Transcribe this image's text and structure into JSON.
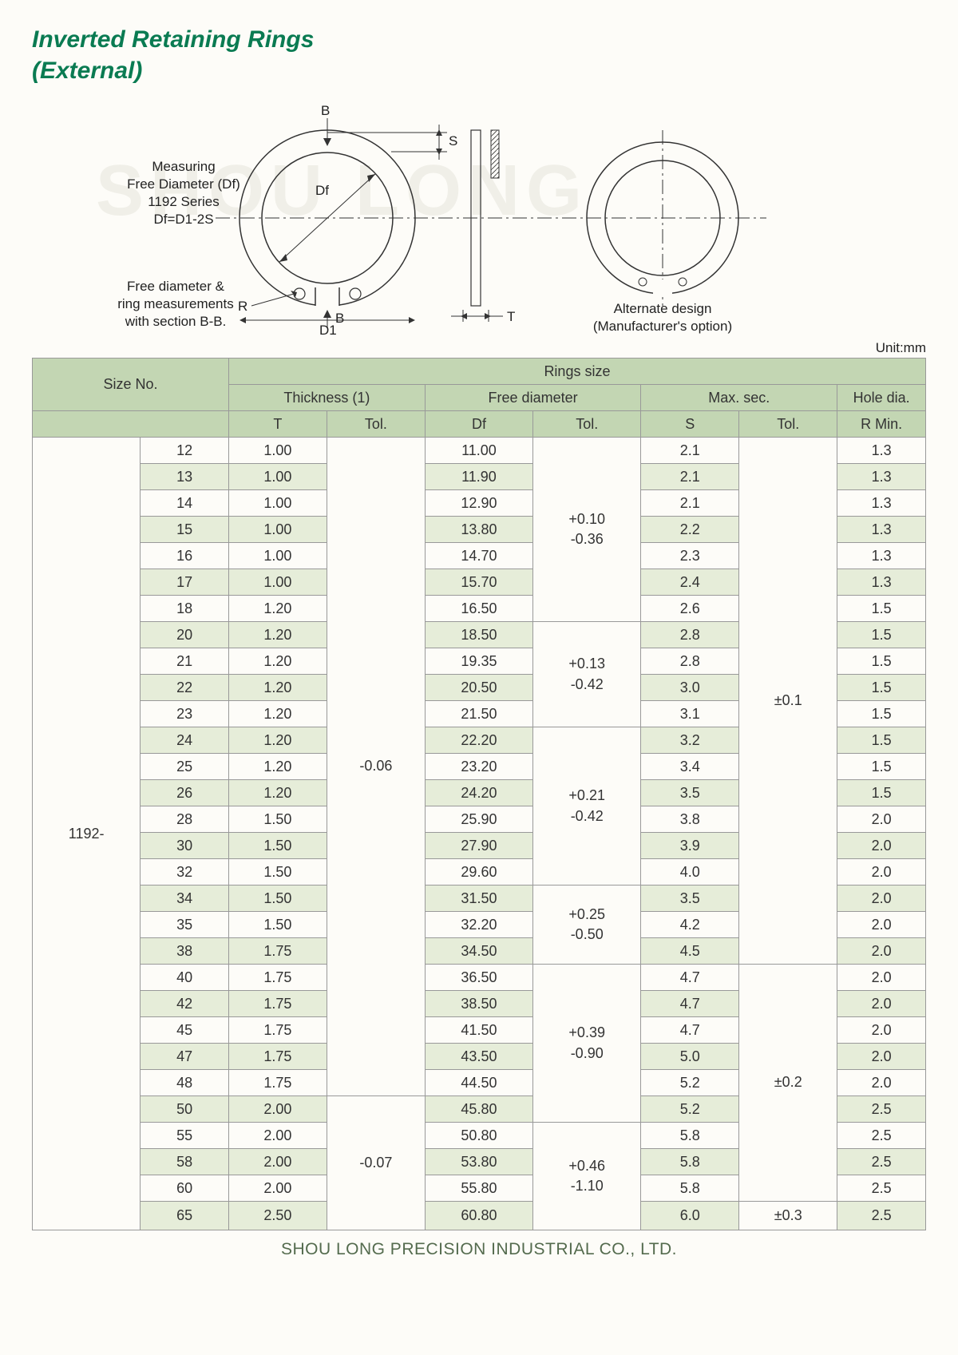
{
  "title_line1": "Inverted Retaining Rings",
  "title_line2": "(External)",
  "watermark": "SHOU LONG",
  "diagram": {
    "measure_label": "Measuring\nFree Diameter (Df)\n1192 Series\nDf=D1-2S",
    "section_label": "Free diameter &\nring measurements\nwith section B-B.",
    "alternate_label": "Alternate design\n(Manufacturer's option)",
    "B_top": "B",
    "B_bot": "B",
    "S": "S",
    "T": "T",
    "Df": "Df",
    "D1": "D1",
    "R": "R"
  },
  "unit": "Unit:mm",
  "headers": {
    "size_no": "Size No.",
    "rings_size": "Rings size",
    "thickness": "Thickness (1)",
    "free_dia": "Free diameter",
    "max_sec": "Max. sec.",
    "hole_dia": "Hole dia.",
    "T": "T",
    "Tol": "Tol.",
    "Df": "Df",
    "S": "S",
    "Rmin": "R Min."
  },
  "series": "1192-",
  "t_tol1": "-0.06",
  "t_tol2": "-0.07",
  "df_tol1": "+0.10\n-0.36",
  "df_tol2": "+0.13\n-0.42",
  "df_tol3": "+0.21\n-0.42",
  "df_tol4": "+0.25\n-0.50",
  "df_tol5": "+0.39\n-0.90",
  "df_tol6": "+0.46\n-1.10",
  "s_tol1": "±0.1",
  "s_tol2": "±0.2",
  "s_tol3": "±0.3",
  "rows": [
    {
      "sz": "12",
      "t": "1.00",
      "df": "11.00",
      "s": "2.1",
      "r": "1.3"
    },
    {
      "sz": "13",
      "t": "1.00",
      "df": "11.90",
      "s": "2.1",
      "r": "1.3"
    },
    {
      "sz": "14",
      "t": "1.00",
      "df": "12.90",
      "s": "2.1",
      "r": "1.3"
    },
    {
      "sz": "15",
      "t": "1.00",
      "df": "13.80",
      "s": "2.2",
      "r": "1.3"
    },
    {
      "sz": "16",
      "t": "1.00",
      "df": "14.70",
      "s": "2.3",
      "r": "1.3"
    },
    {
      "sz": "17",
      "t": "1.00",
      "df": "15.70",
      "s": "2.4",
      "r": "1.3"
    },
    {
      "sz": "18",
      "t": "1.20",
      "df": "16.50",
      "s": "2.6",
      "r": "1.5"
    },
    {
      "sz": "20",
      "t": "1.20",
      "df": "18.50",
      "s": "2.8",
      "r": "1.5"
    },
    {
      "sz": "21",
      "t": "1.20",
      "df": "19.35",
      "s": "2.8",
      "r": "1.5"
    },
    {
      "sz": "22",
      "t": "1.20",
      "df": "20.50",
      "s": "3.0",
      "r": "1.5"
    },
    {
      "sz": "23",
      "t": "1.20",
      "df": "21.50",
      "s": "3.1",
      "r": "1.5"
    },
    {
      "sz": "24",
      "t": "1.20",
      "df": "22.20",
      "s": "3.2",
      "r": "1.5"
    },
    {
      "sz": "25",
      "t": "1.20",
      "df": "23.20",
      "s": "3.4",
      "r": "1.5"
    },
    {
      "sz": "26",
      "t": "1.20",
      "df": "24.20",
      "s": "3.5",
      "r": "1.5"
    },
    {
      "sz": "28",
      "t": "1.50",
      "df": "25.90",
      "s": "3.8",
      "r": "2.0"
    },
    {
      "sz": "30",
      "t": "1.50",
      "df": "27.90",
      "s": "3.9",
      "r": "2.0"
    },
    {
      "sz": "32",
      "t": "1.50",
      "df": "29.60",
      "s": "4.0",
      "r": "2.0"
    },
    {
      "sz": "34",
      "t": "1.50",
      "df": "31.50",
      "s": "3.5",
      "r": "2.0"
    },
    {
      "sz": "35",
      "t": "1.50",
      "df": "32.20",
      "s": "4.2",
      "r": "2.0"
    },
    {
      "sz": "38",
      "t": "1.75",
      "df": "34.50",
      "s": "4.5",
      "r": "2.0"
    },
    {
      "sz": "40",
      "t": "1.75",
      "df": "36.50",
      "s": "4.7",
      "r": "2.0"
    },
    {
      "sz": "42",
      "t": "1.75",
      "df": "38.50",
      "s": "4.7",
      "r": "2.0"
    },
    {
      "sz": "45",
      "t": "1.75",
      "df": "41.50",
      "s": "4.7",
      "r": "2.0"
    },
    {
      "sz": "47",
      "t": "1.75",
      "df": "43.50",
      "s": "5.0",
      "r": "2.0"
    },
    {
      "sz": "48",
      "t": "1.75",
      "df": "44.50",
      "s": "5.2",
      "r": "2.0"
    },
    {
      "sz": "50",
      "t": "2.00",
      "df": "45.80",
      "s": "5.2",
      "r": "2.5"
    },
    {
      "sz": "55",
      "t": "2.00",
      "df": "50.80",
      "s": "5.8",
      "r": "2.5"
    },
    {
      "sz": "58",
      "t": "2.00",
      "df": "53.80",
      "s": "5.8",
      "r": "2.5"
    },
    {
      "sz": "60",
      "t": "2.00",
      "df": "55.80",
      "s": "5.8",
      "r": "2.5"
    },
    {
      "sz": "65",
      "t": "2.50",
      "df": "60.80",
      "s": "6.0",
      "r": "2.5"
    }
  ],
  "footer": "SHOU LONG PRECISION INDUSTRIAL CO., LTD.",
  "colors": {
    "title": "#0a7b52",
    "header_bg": "#c3d6b3",
    "alt_bg": "#e6edd9",
    "border": "#999999",
    "page_bg": "#fdfcf8"
  }
}
